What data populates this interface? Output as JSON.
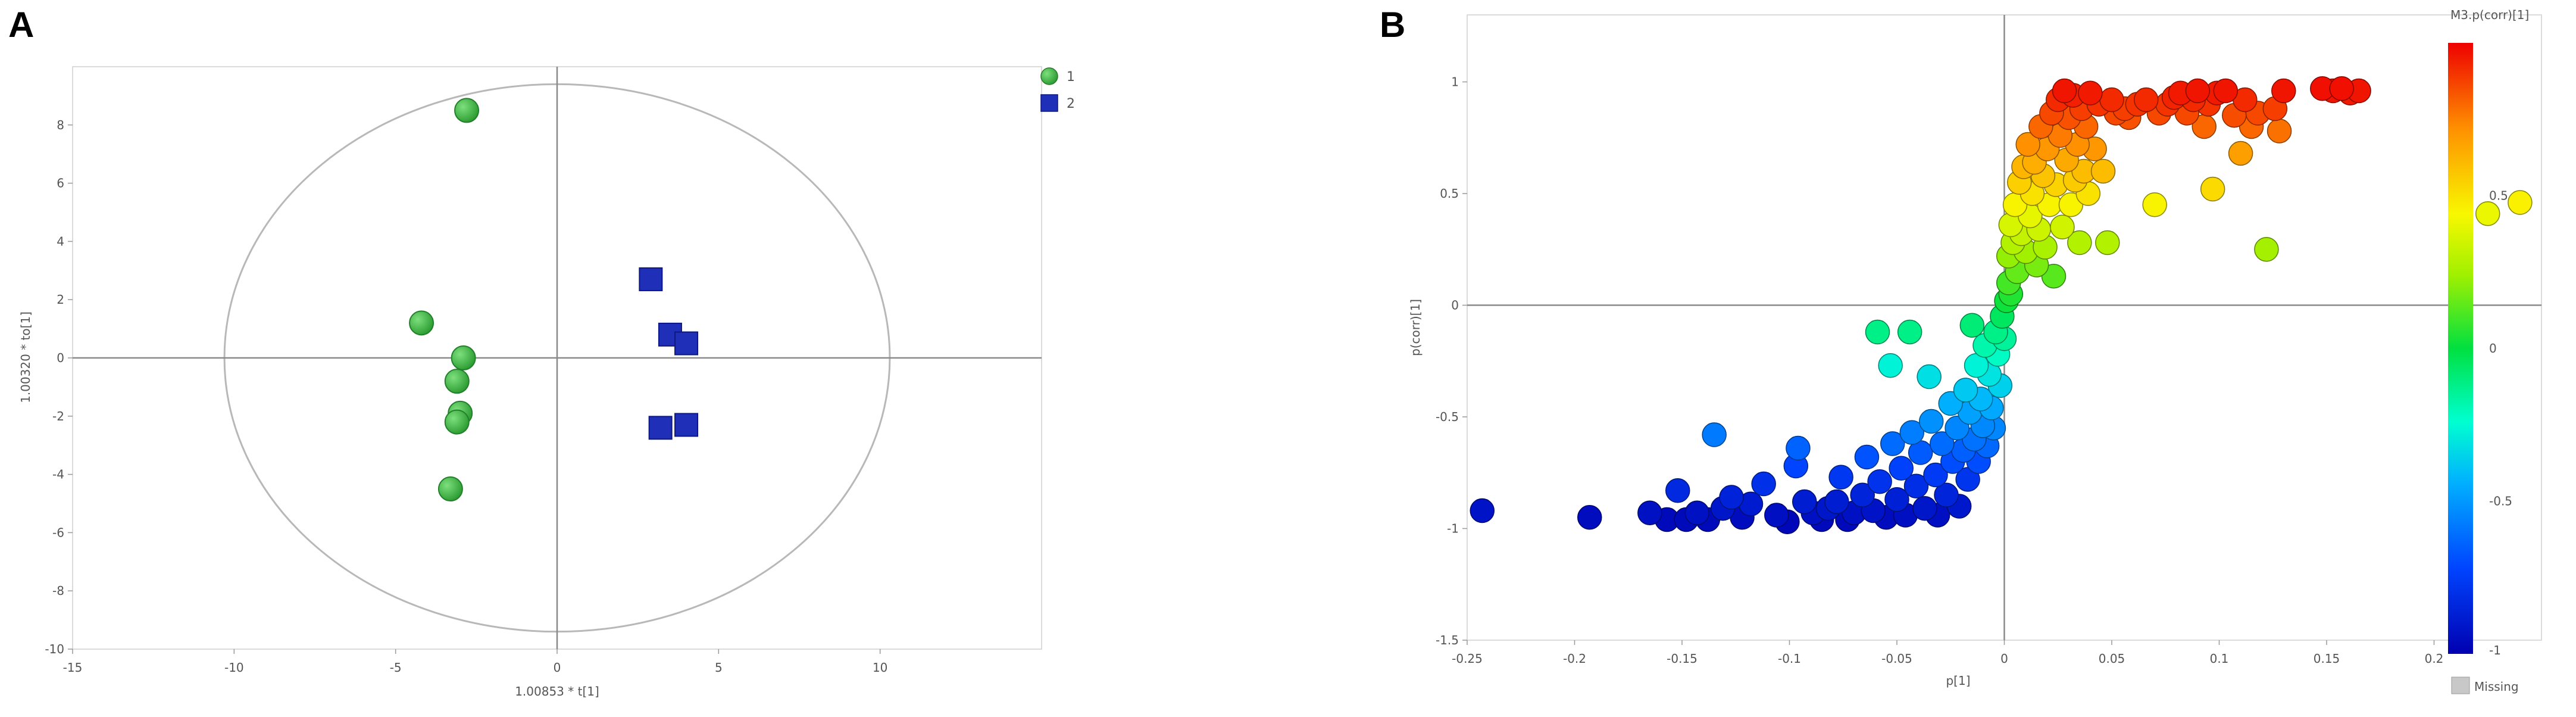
{
  "chart_data": [
    {
      "panel": "A",
      "type": "scatter",
      "xlabel": "1.00853 * t[1]",
      "ylabel": "1.00320 * to[1]",
      "xlim": [
        -15,
        15
      ],
      "ylim": [
        -10,
        10
      ],
      "xticks": [
        -15,
        -10,
        -5,
        0,
        5,
        10
      ],
      "yticks": [
        -10,
        -8,
        -6,
        -4,
        -2,
        0,
        2,
        4,
        6,
        8
      ],
      "ellipse": {
        "rx": 10.3,
        "ry": 9.4
      },
      "series": [
        {
          "name": "1",
          "marker": "circle",
          "color": "#3cb043",
          "points": [
            [
              -2.8,
              8.5
            ],
            [
              -4.2,
              1.2
            ],
            [
              -2.9,
              0.0
            ],
            [
              -3.1,
              -0.8
            ],
            [
              -3.0,
              -1.9
            ],
            [
              -3.1,
              -2.2
            ],
            [
              -3.3,
              -4.5
            ]
          ]
        },
        {
          "name": "2",
          "marker": "square",
          "color": "#1f2fb8",
          "points": [
            [
              2.9,
              2.7
            ],
            [
              3.5,
              0.8
            ],
            [
              4.0,
              0.5
            ],
            [
              3.2,
              -2.4
            ],
            [
              4.0,
              -2.3
            ]
          ]
        }
      ]
    },
    {
      "panel": "B",
      "type": "scatter",
      "xlabel": "p[1]",
      "ylabel": "p(corr)[1]",
      "xlim": [
        -0.25,
        0.25
      ],
      "ylim": [
        -1.5,
        1.3
      ],
      "xticks": [
        -0.25,
        -0.2,
        -0.15,
        -0.1,
        -0.05,
        0,
        0.05,
        0.1,
        0.15,
        0.2
      ],
      "xtick_labels": [
        "-0.25",
        "-0.2",
        "-0.15",
        "-0.1",
        "-0.05",
        "0",
        "0.05",
        "0.1",
        "0.15",
        "0.2"
      ],
      "yticks": [
        -1.5,
        -1,
        -0.5,
        0,
        0.5,
        1
      ],
      "yticklabels": [
        "-1.5",
        "-1",
        "-0.5",
        "0",
        "0.5",
        "1"
      ],
      "colorbar": {
        "title": "M3.p(corr)[1]",
        "ticks": [
          -1,
          -0.5,
          0,
          0.5
        ],
        "tick_labels": [
          "-1",
          "-0.5",
          "0",
          "0.5"
        ],
        "range": [
          -1,
          1
        ],
        "missing_label": "Missing"
      },
      "points": [
        [
          -0.243,
          -0.92
        ],
        [
          -0.193,
          -0.95
        ],
        [
          -0.165,
          -0.93
        ],
        [
          -0.157,
          -0.96
        ],
        [
          -0.152,
          -0.83
        ],
        [
          -0.148,
          -0.96
        ],
        [
          -0.143,
          -0.93
        ],
        [
          -0.138,
          -0.96
        ],
        [
          -0.135,
          -0.58
        ],
        [
          -0.131,
          -0.91
        ],
        [
          -0.127,
          -0.86
        ],
        [
          -0.122,
          -0.95
        ],
        [
          -0.118,
          -0.89
        ],
        [
          -0.112,
          -0.8
        ],
        [
          -0.106,
          -0.94
        ],
        [
          -0.101,
          -0.97
        ],
        [
          -0.097,
          -0.72
        ],
        [
          -0.096,
          -0.64
        ],
        [
          -0.093,
          -0.88
        ],
        [
          -0.089,
          -0.93
        ],
        [
          -0.085,
          -0.96
        ],
        [
          -0.082,
          -0.91
        ],
        [
          -0.078,
          -0.88
        ],
        [
          -0.076,
          -0.77
        ],
        [
          -0.073,
          -0.96
        ],
        [
          -0.07,
          -0.93
        ],
        [
          -0.066,
          -0.85
        ],
        [
          -0.064,
          -0.68
        ],
        [
          -0.061,
          -0.92
        ],
        [
          -0.059,
          -0.12
        ],
        [
          -0.058,
          -0.79
        ],
        [
          -0.055,
          -0.95
        ],
        [
          -0.053,
          -0.27
        ],
        [
          -0.052,
          -0.62
        ],
        [
          -0.05,
          -0.87
        ],
        [
          -0.048,
          -0.73
        ],
        [
          -0.046,
          -0.94
        ],
        [
          -0.044,
          -0.12
        ],
        [
          -0.043,
          -0.57
        ],
        [
          -0.041,
          -0.81
        ],
        [
          -0.039,
          -0.66
        ],
        [
          -0.037,
          -0.91
        ],
        [
          -0.035,
          -0.32
        ],
        [
          -0.034,
          -0.52
        ],
        [
          -0.032,
          -0.76
        ],
        [
          -0.031,
          -0.94
        ],
        [
          -0.029,
          -0.62
        ],
        [
          -0.027,
          -0.85
        ],
        [
          -0.025,
          -0.44
        ],
        [
          -0.024,
          -0.7
        ],
        [
          -0.022,
          -0.55
        ],
        [
          -0.021,
          -0.9
        ],
        [
          -0.019,
          -0.65
        ],
        [
          -0.018,
          -0.38
        ],
        [
          -0.017,
          -0.78
        ],
        [
          -0.016,
          -0.48
        ],
        [
          -0.015,
          -0.09
        ],
        [
          -0.014,
          -0.6
        ],
        [
          -0.013,
          -0.27
        ],
        [
          -0.012,
          -0.7
        ],
        [
          -0.011,
          -0.42
        ],
        [
          -0.01,
          -0.54
        ],
        [
          -0.009,
          -0.18
        ],
        [
          -0.008,
          -0.63
        ],
        [
          -0.007,
          -0.31
        ],
        [
          -0.006,
          -0.46
        ],
        [
          -0.005,
          -0.55
        ],
        [
          -0.004,
          -0.12
        ],
        [
          -0.003,
          -0.22
        ],
        [
          -0.002,
          -0.36
        ],
        [
          -0.001,
          -0.05
        ],
        [
          0.0,
          -0.15
        ],
        [
          0.001,
          0.02
        ],
        [
          0.002,
          0.1
        ],
        [
          0.002,
          0.22
        ],
        [
          0.003,
          0.36
        ],
        [
          0.003,
          0.05
        ],
        [
          0.004,
          0.28
        ],
        [
          0.005,
          0.45
        ],
        [
          0.006,
          0.15
        ],
        [
          0.007,
          0.55
        ],
        [
          0.008,
          0.32
        ],
        [
          0.009,
          0.62
        ],
        [
          0.01,
          0.24
        ],
        [
          0.011,
          0.72
        ],
        [
          0.012,
          0.4
        ],
        [
          0.013,
          0.5
        ],
        [
          0.014,
          0.64
        ],
        [
          0.015,
          0.18
        ],
        [
          0.016,
          0.34
        ],
        [
          0.017,
          0.8
        ],
        [
          0.018,
          0.58
        ],
        [
          0.019,
          0.26
        ],
        [
          0.02,
          0.7
        ],
        [
          0.021,
          0.45
        ],
        [
          0.022,
          0.86
        ],
        [
          0.023,
          0.13
        ],
        [
          0.024,
          0.54
        ],
        [
          0.025,
          0.92
        ],
        [
          0.026,
          0.76
        ],
        [
          0.027,
          0.35
        ],
        [
          0.028,
          0.96
        ],
        [
          0.029,
          0.65
        ],
        [
          0.03,
          0.84
        ],
        [
          0.031,
          0.45
        ],
        [
          0.032,
          0.94
        ],
        [
          0.033,
          0.56
        ],
        [
          0.034,
          0.72
        ],
        [
          0.035,
          0.28
        ],
        [
          0.036,
          0.88
        ],
        [
          0.037,
          0.6
        ],
        [
          0.038,
          0.8
        ],
        [
          0.039,
          0.5
        ],
        [
          0.04,
          0.95
        ],
        [
          0.042,
          0.7
        ],
        [
          0.044,
          0.9
        ],
        [
          0.046,
          0.6
        ],
        [
          0.048,
          0.28
        ],
        [
          0.05,
          0.92
        ],
        [
          0.052,
          0.86
        ],
        [
          0.056,
          0.88
        ],
        [
          0.058,
          0.84
        ],
        [
          0.062,
          0.9
        ],
        [
          0.066,
          0.92
        ],
        [
          0.07,
          0.45
        ],
        [
          0.072,
          0.86
        ],
        [
          0.076,
          0.9
        ],
        [
          0.079,
          0.93
        ],
        [
          0.082,
          0.95
        ],
        [
          0.085,
          0.86
        ],
        [
          0.088,
          0.92
        ],
        [
          0.09,
          0.96
        ],
        [
          0.093,
          0.8
        ],
        [
          0.095,
          0.9
        ],
        [
          0.097,
          0.52
        ],
        [
          0.099,
          0.95
        ],
        [
          0.103,
          0.96
        ],
        [
          0.107,
          0.85
        ],
        [
          0.11,
          0.68
        ],
        [
          0.112,
          0.92
        ],
        [
          0.115,
          0.8
        ],
        [
          0.118,
          0.86
        ],
        [
          0.122,
          0.25
        ],
        [
          0.126,
          0.88
        ],
        [
          0.128,
          0.78
        ],
        [
          0.13,
          0.96
        ],
        [
          0.148,
          0.97
        ],
        [
          0.153,
          0.96
        ],
        [
          0.157,
          0.97
        ],
        [
          0.161,
          0.95
        ],
        [
          0.165,
          0.96
        ],
        [
          0.225,
          0.41
        ],
        [
          0.24,
          0.46
        ]
      ]
    }
  ]
}
